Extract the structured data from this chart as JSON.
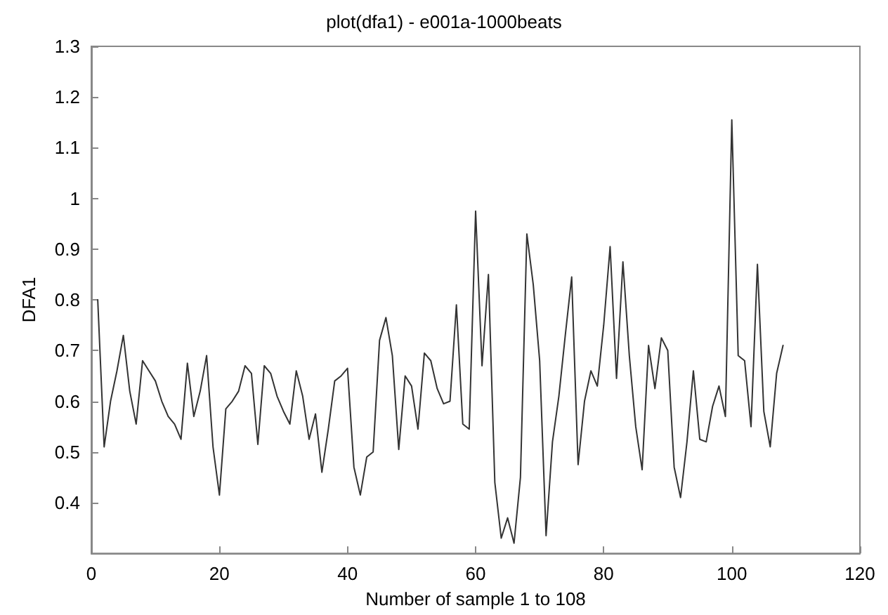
{
  "chart_data": {
    "type": "line",
    "title": "plot(dfa1) - e001a-1000beats",
    "xlabel": "Number of sample 1 to 108",
    "ylabel": "DFA1",
    "x": [
      1,
      2,
      3,
      4,
      5,
      6,
      7,
      8,
      9,
      10,
      11,
      12,
      13,
      14,
      15,
      16,
      17,
      18,
      19,
      20,
      21,
      22,
      23,
      24,
      25,
      26,
      27,
      28,
      29,
      30,
      31,
      32,
      33,
      34,
      35,
      36,
      37,
      38,
      39,
      40,
      41,
      42,
      43,
      44,
      45,
      46,
      47,
      48,
      49,
      50,
      51,
      52,
      53,
      54,
      55,
      56,
      57,
      58,
      59,
      60,
      61,
      62,
      63,
      64,
      65,
      66,
      67,
      68,
      69,
      70,
      71,
      72,
      73,
      74,
      75,
      76,
      77,
      78,
      79,
      80,
      81,
      82,
      83,
      84,
      85,
      86,
      87,
      88,
      89,
      90,
      91,
      92,
      93,
      94,
      95,
      96,
      97,
      98,
      99,
      100,
      101,
      102,
      103,
      104,
      105,
      106,
      107,
      108
    ],
    "series": [
      {
        "color": "#333333",
        "values": [
          0.8,
          0.51,
          0.6,
          0.66,
          0.73,
          0.62,
          0.555,
          0.68,
          0.66,
          0.64,
          0.6,
          0.57,
          0.555,
          0.525,
          0.675,
          0.57,
          0.62,
          0.69,
          0.51,
          0.415,
          0.585,
          0.6,
          0.62,
          0.67,
          0.655,
          0.515,
          0.67,
          0.655,
          0.61,
          0.58,
          0.555,
          0.66,
          0.61,
          0.525,
          0.575,
          0.46,
          0.545,
          0.64,
          0.65,
          0.665,
          0.47,
          0.415,
          0.49,
          0.5,
          0.72,
          0.765,
          0.69,
          0.505,
          0.65,
          0.63,
          0.545,
          0.695,
          0.68,
          0.625,
          0.595,
          0.6,
          0.79,
          0.555,
          0.545,
          0.975,
          0.67,
          0.85,
          0.44,
          0.33,
          0.37,
          0.32,
          0.45,
          0.93,
          0.83,
          0.68,
          0.335,
          0.52,
          0.61,
          0.73,
          0.845,
          0.475,
          0.6,
          0.66,
          0.63,
          0.75,
          0.905,
          0.645,
          0.875,
          0.69,
          0.55,
          0.465,
          0.71,
          0.625,
          0.725,
          0.7,
          0.47,
          0.41,
          0.52,
          0.66,
          0.525,
          0.52,
          0.59,
          0.63,
          0.57,
          1.155,
          0.69,
          0.68,
          0.55,
          0.87,
          0.58,
          0.51,
          0.655,
          0.71
        ]
      }
    ],
    "xlim": [
      0,
      120
    ],
    "xticks": [
      0,
      20,
      40,
      60,
      80,
      100,
      120
    ],
    "ylim": [
      0.3,
      1.3
    ],
    "yticks": [
      0.4,
      0.5,
      0.6,
      0.7,
      0.8,
      0.9,
      1,
      1.1,
      1.2,
      1.3
    ],
    "grid": false,
    "marker": "none",
    "line_style": "solid"
  }
}
